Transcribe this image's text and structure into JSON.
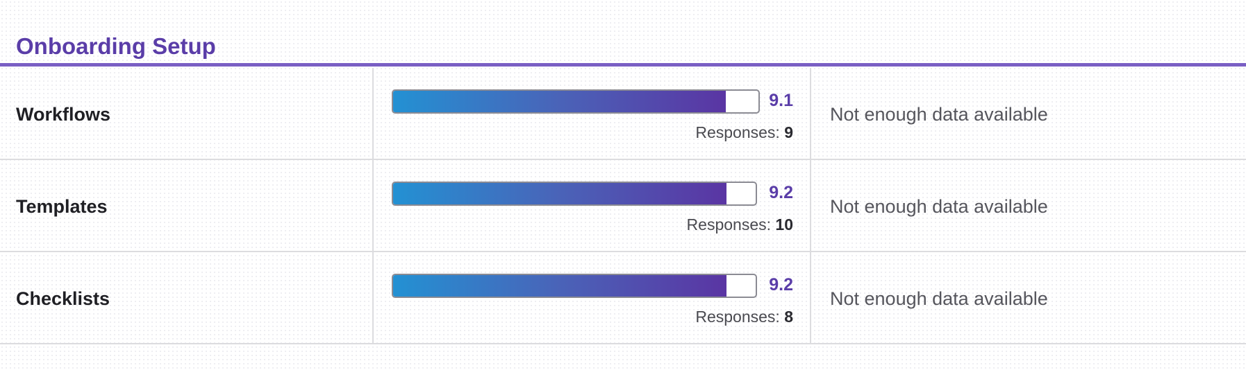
{
  "section": {
    "title": "Onboarding Setup"
  },
  "colors": {
    "accent": "#5a3da8",
    "bar_gradient_start": "#2391d3",
    "bar_gradient_end": "#5a35a3"
  },
  "score_scale_max": 10,
  "responses_label": "Responses:",
  "rows": [
    {
      "name": "Workflows",
      "score": "9.1",
      "score_value": 9.1,
      "responses": "9",
      "note": "Not enough data available"
    },
    {
      "name": "Templates",
      "score": "9.2",
      "score_value": 9.2,
      "responses": "10",
      "note": "Not enough data available"
    },
    {
      "name": "Checklists",
      "score": "9.2",
      "score_value": 9.2,
      "responses": "8",
      "note": "Not enough data available"
    }
  ]
}
